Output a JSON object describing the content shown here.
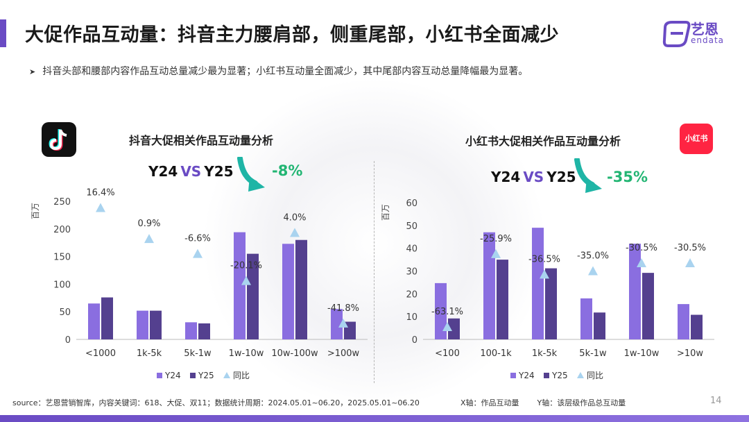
{
  "header": {
    "title": "大促作品互动量：抖音主力腰肩部，侧重尾部，小红书全面减少",
    "bullet": "抖音头部和腰部内容作品互动总量减少最为显著；小红书互动量全面减少，其中尾部内容互动总量降幅最为显著。",
    "logo_text": "艺恩",
    "logo_sub": "endata"
  },
  "colors": {
    "y24": "#8a6ee0",
    "y25": "#54408f",
    "yoy": "#a9d3ef",
    "accent": "#6a4bc4",
    "green": "#22b573"
  },
  "douyin": {
    "vs_left": "Y24",
    "vs_mid": "VS",
    "vs_right": "Y25",
    "change": "-8%"
  },
  "xhs": {
    "icon_label": "小红书",
    "vs_left": "Y24",
    "vs_mid": "VS",
    "vs_right": "Y25",
    "change": "-35%"
  },
  "chart_data": [
    {
      "type": "bar",
      "title": "抖音大促相关作品互动量分析",
      "ylabel": "百万",
      "ylim": [
        0,
        250
      ],
      "yticks": [
        0,
        50,
        100,
        150,
        200,
        250
      ],
      "categories": [
        "<1000",
        "1k-5k",
        "5k-1w",
        "1w-10w",
        "10w-100w",
        ">100w"
      ],
      "series": [
        {
          "name": "Y24",
          "values": [
            65,
            52,
            31,
            194,
            173,
            55
          ]
        },
        {
          "name": "Y25",
          "values": [
            76,
            52,
            29,
            155,
            180,
            32
          ]
        }
      ],
      "yoy": {
        "name": "同比",
        "labels": [
          "16.4%",
          "0.9%",
          "-6.6%",
          "-20.1%",
          "4.0%",
          "-41.8%"
        ],
        "marker_y": [
          238,
          182,
          155,
          106,
          193,
          29
        ]
      },
      "legend": "bottom"
    },
    {
      "type": "bar",
      "title": "小红书大促相关作品互动量分析",
      "ylabel": "百万",
      "ylim": [
        0,
        60
      ],
      "yticks": [
        0,
        10,
        20,
        30,
        40,
        50,
        60
      ],
      "categories": [
        "<100",
        "100-1k",
        "1k-5k",
        "5k-1w",
        "1w-10w",
        ">10w"
      ],
      "series": [
        {
          "name": "Y24",
          "values": [
            24.7,
            47,
            49,
            18,
            42,
            15.5
          ]
        },
        {
          "name": "Y25",
          "values": [
            9.2,
            35,
            31.2,
            11.8,
            29.2,
            10.8
          ]
        }
      ],
      "yoy": {
        "name": "同比",
        "labels": [
          "-63.1%",
          "-25.9%",
          "-36.5%",
          "-35.0%",
          "-30.5%",
          "-30.5%"
        ],
        "marker_y": [
          5.5,
          37.5,
          28.5,
          30,
          33.5,
          33.5
        ]
      },
      "legend": "bottom"
    }
  ],
  "footer": {
    "source": "source：艺恩营销智库，内容关键词：618、大促、双11；数据统计周期：2024.05.01~06.20，2025.05.01~06.20",
    "x_axis_note": "X轴：作品互动量",
    "y_axis_note": "Y轴：该层级作品总互动量",
    "page": "14"
  }
}
